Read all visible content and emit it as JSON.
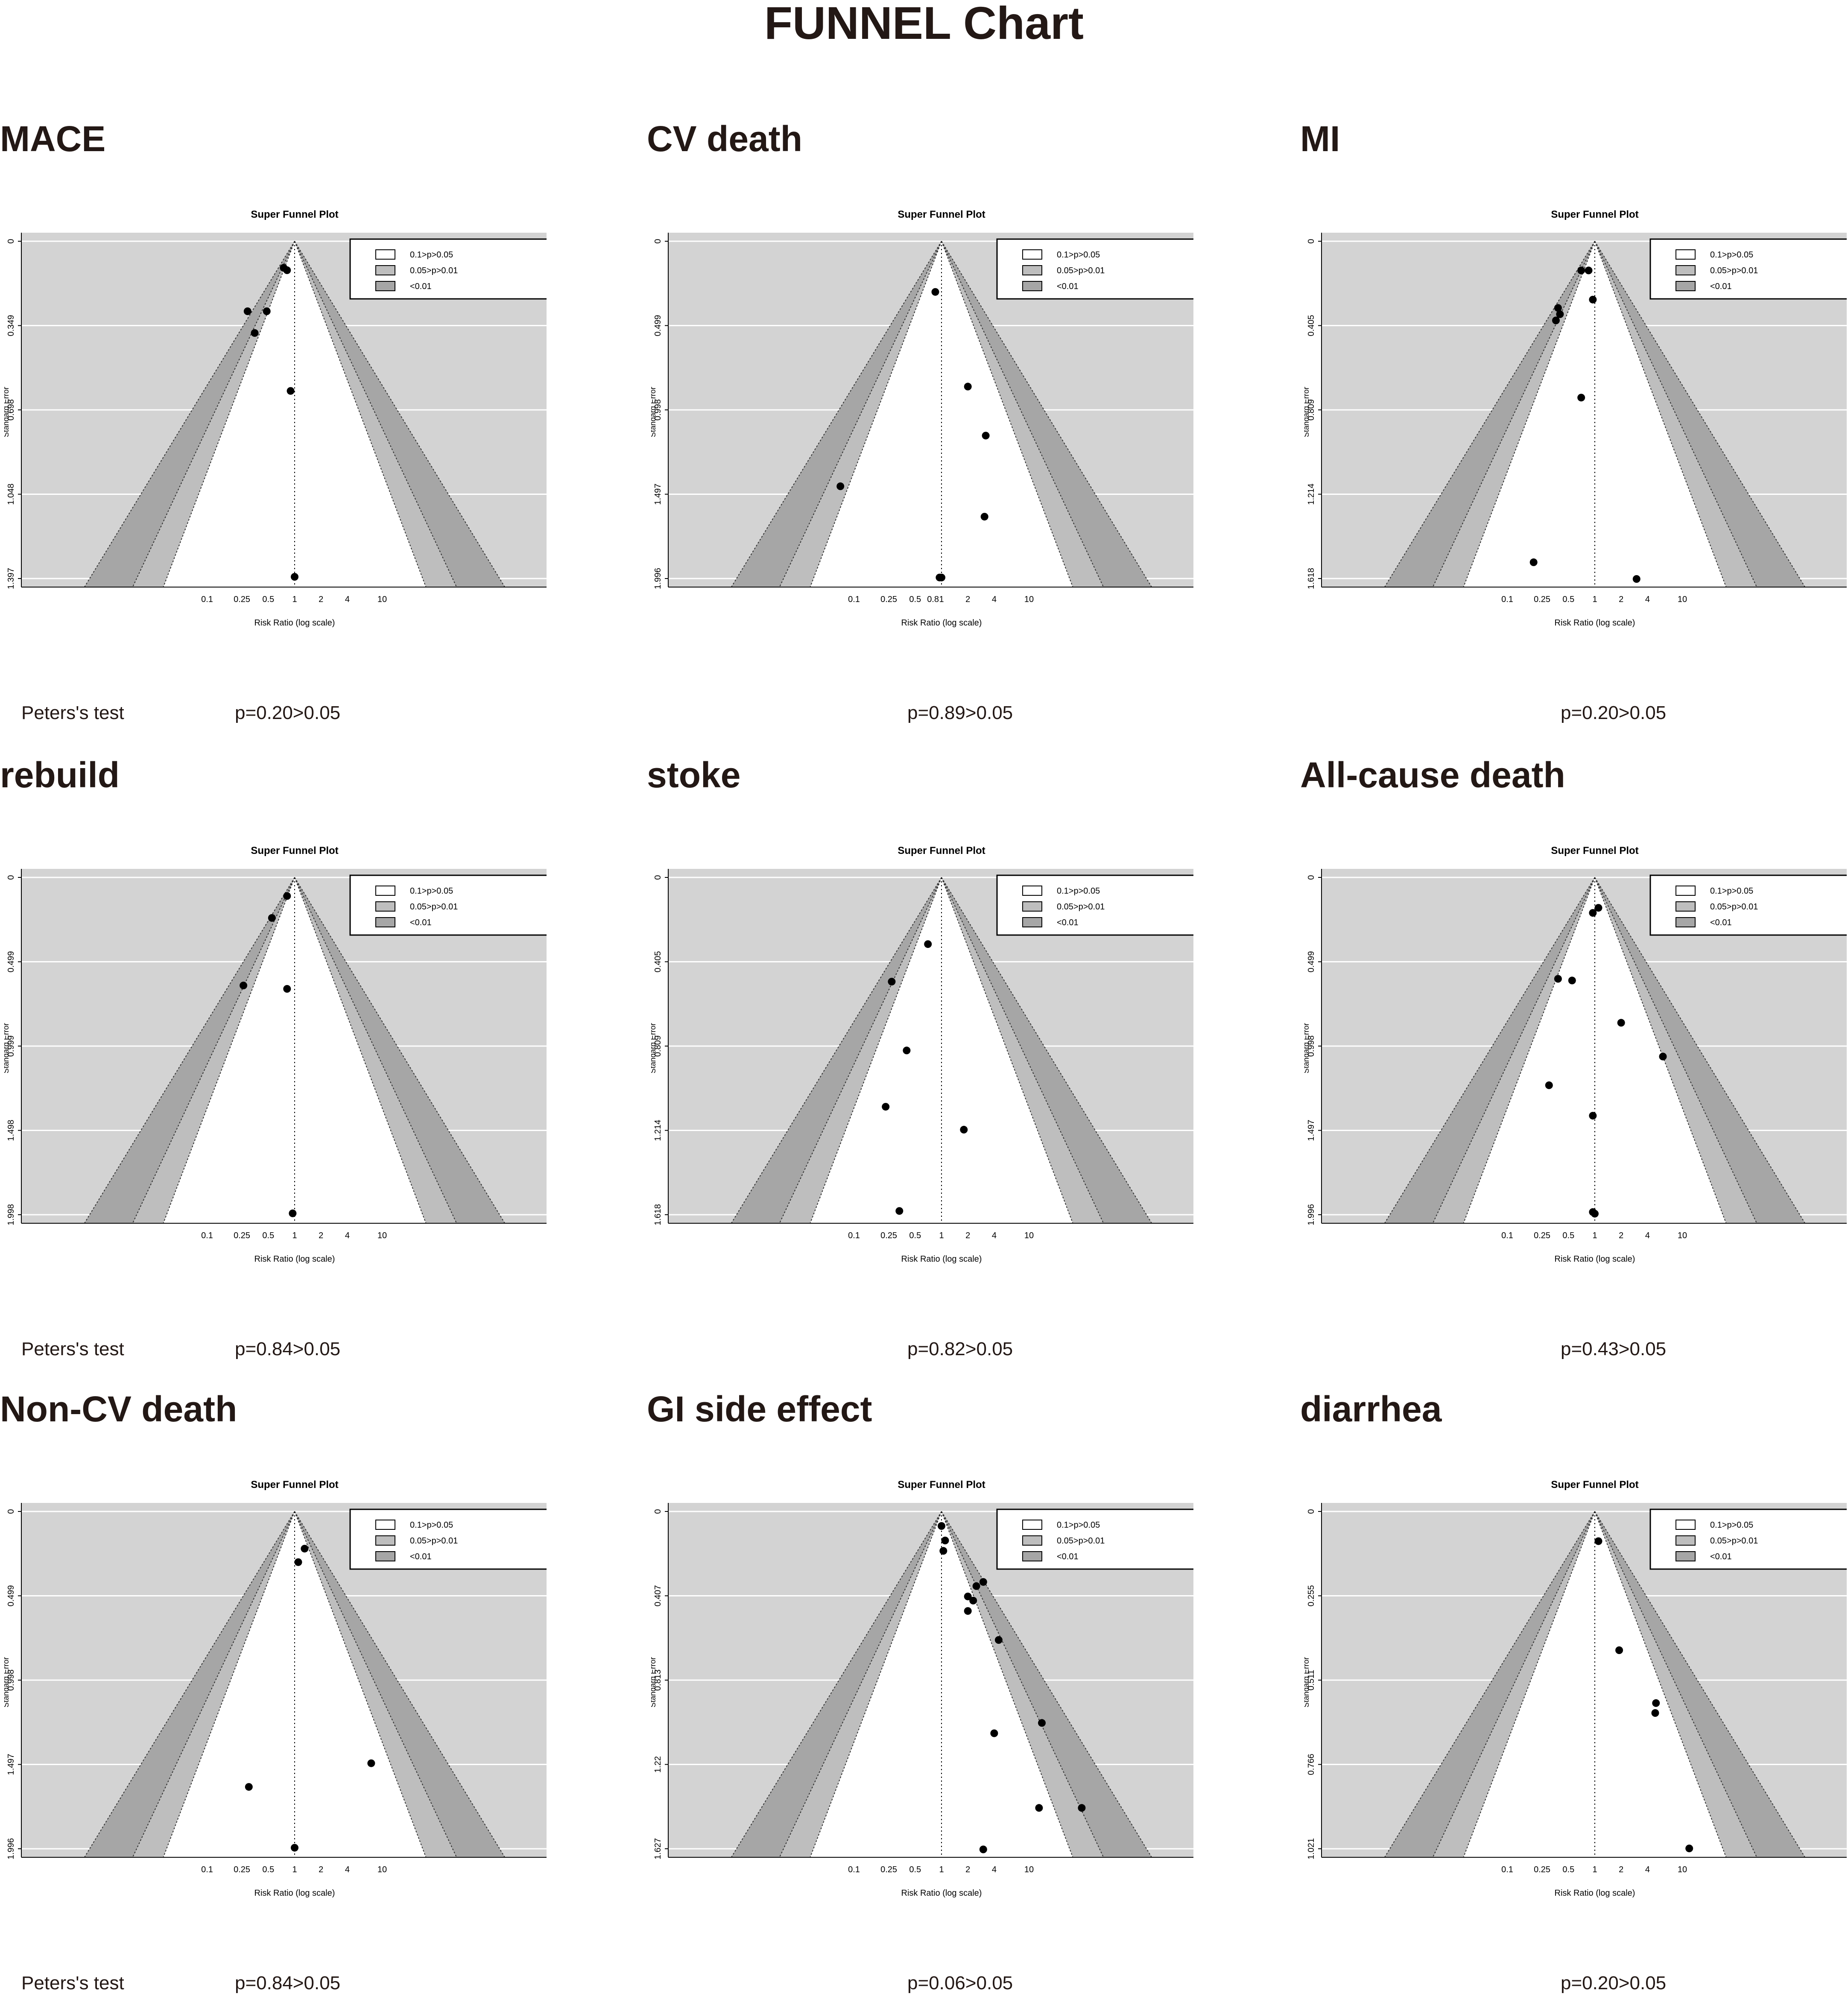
{
  "title": "FUNNEL Chart",
  "peters_label": "Peters's test",
  "legend": [
    "0.1>p>0.05",
    "0.05>p>0.01",
    "<0.01"
  ],
  "plot_title": "Super Funnel Plot",
  "xlabel": "Risk Ratio (log scale)",
  "ylabel": "Standard Error",
  "colors": {
    "background": "#d3d3d3",
    "band_p10": "#ffffff",
    "band_p05": "#bebebe",
    "band_p01": "#a6a6a6",
    "gridline": "#ffffff",
    "point": "#000000",
    "text": "#231815"
  },
  "chart_data": [
    {
      "type": "scatter",
      "panel_title": "MACE",
      "x_ticks": [
        "0.1",
        "0.25",
        "0.5",
        "1",
        "2",
        "4",
        "10"
      ],
      "y_ticks": [
        "0",
        "0.349",
        "0.698",
        "1.048",
        "1.397"
      ],
      "y_max": 1.397,
      "peters_p": "p=0.20>0.05",
      "show_peters_label": true,
      "points": [
        [
          0.75,
          0.11
        ],
        [
          0.82,
          0.12
        ],
        [
          0.29,
          0.29
        ],
        [
          0.48,
          0.29
        ],
        [
          0.35,
          0.38
        ],
        [
          0.9,
          0.62
        ],
        [
          1.0,
          1.39
        ]
      ]
    },
    {
      "type": "scatter",
      "panel_title": "CV death",
      "x_ticks": [
        "0.1",
        "0.25",
        "0.5",
        "0.8",
        "1",
        "2",
        "4",
        "10"
      ],
      "y_ticks": [
        "0",
        "0.499",
        "0.998",
        "1.497",
        "1.996"
      ],
      "y_max": 1.996,
      "peters_p": "p=0.89>0.05",
      "show_peters_label": false,
      "points": [
        [
          0.85,
          0.3
        ],
        [
          2.0,
          0.86
        ],
        [
          3.2,
          1.15
        ],
        [
          0.07,
          1.45
        ],
        [
          3.1,
          1.63
        ],
        [
          1.0,
          1.99
        ],
        [
          0.95,
          1.99
        ]
      ]
    },
    {
      "type": "scatter",
      "panel_title": "MI",
      "x_ticks": [
        "0.1",
        "0.25",
        "0.5",
        "1",
        "2",
        "4",
        "10"
      ],
      "y_ticks": [
        "0",
        "0.405",
        "0.809",
        "1.214",
        "1.618"
      ],
      "y_max": 1.618,
      "peters_p": "p=0.20>0.05",
      "show_peters_label": false,
      "points": [
        [
          0.7,
          0.14
        ],
        [
          0.85,
          0.14
        ],
        [
          0.38,
          0.32
        ],
        [
          0.4,
          0.35
        ],
        [
          0.36,
          0.38
        ],
        [
          0.95,
          0.28
        ],
        [
          0.7,
          0.75
        ],
        [
          0.2,
          1.54
        ],
        [
          3.0,
          1.62
        ]
      ]
    },
    {
      "type": "scatter",
      "panel_title": "rebuild",
      "x_ticks": [
        "0.1",
        "0.25",
        "0.5",
        "1",
        "2",
        "4",
        "10"
      ],
      "y_ticks": [
        "0",
        "0.499",
        "0.999",
        "1.498",
        "1.998"
      ],
      "y_max": 1.998,
      "peters_p": "p=0.84>0.05",
      "show_peters_label": true,
      "points": [
        [
          0.82,
          0.11
        ],
        [
          0.55,
          0.24
        ],
        [
          0.26,
          0.64
        ],
        [
          0.82,
          0.66
        ],
        [
          0.95,
          1.99
        ]
      ]
    },
    {
      "type": "scatter",
      "panel_title": "stoke",
      "x_ticks": [
        "0.1",
        "0.25",
        "0.5",
        "1",
        "2",
        "4",
        "10"
      ],
      "y_ticks": [
        "0",
        "0.405",
        "0.809",
        "1.214",
        "1.618"
      ],
      "y_max": 1.618,
      "peters_p": "p=0.82>0.05",
      "show_peters_label": false,
      "points": [
        [
          0.7,
          0.32
        ],
        [
          0.27,
          0.5
        ],
        [
          0.4,
          0.83
        ],
        [
          0.23,
          1.1
        ],
        [
          1.8,
          1.21
        ],
        [
          0.33,
          1.6
        ]
      ]
    },
    {
      "type": "scatter",
      "panel_title": "All-cause death",
      "x_ticks": [
        "0.1",
        "0.25",
        "0.5",
        "1",
        "2",
        "4",
        "10"
      ],
      "y_ticks": [
        "0",
        "0.499",
        "0.998",
        "1.497",
        "1.996"
      ],
      "y_max": 1.996,
      "peters_p": "p=0.43>0.05",
      "show_peters_label": false,
      "points": [
        [
          1.1,
          0.18
        ],
        [
          0.95,
          0.21
        ],
        [
          0.38,
          0.6
        ],
        [
          0.55,
          0.61
        ],
        [
          2.0,
          0.86
        ],
        [
          6.0,
          1.06
        ],
        [
          0.3,
          1.23
        ],
        [
          0.95,
          1.41
        ],
        [
          0.95,
          1.98
        ],
        [
          1.0,
          1.99
        ]
      ]
    },
    {
      "type": "scatter",
      "panel_title": "Non-CV death",
      "x_ticks": [
        "0.1",
        "0.25",
        "0.5",
        "1",
        "2",
        "4",
        "10"
      ],
      "y_ticks": [
        "0",
        "0.499",
        "0.998",
        "1.497",
        "1.996"
      ],
      "y_max": 1.996,
      "peters_p": "p=0.84>0.05",
      "show_peters_label": true,
      "points": [
        [
          1.3,
          0.22
        ],
        [
          1.1,
          0.3
        ],
        [
          7.5,
          1.49
        ],
        [
          0.3,
          1.63
        ],
        [
          1.0,
          1.99
        ]
      ]
    },
    {
      "type": "scatter",
      "panel_title": "GI side effect",
      "x_ticks": [
        "0.1",
        "0.25",
        "0.5",
        "1",
        "2",
        "4",
        "10"
      ],
      "y_ticks": [
        "0",
        "0.407",
        "0.813",
        "1.22",
        "1.627"
      ],
      "y_max": 1.627,
      "peters_p": "p=0.06>0.05",
      "show_peters_label": false,
      "points": [
        [
          1.0,
          0.07
        ],
        [
          1.1,
          0.14
        ],
        [
          1.05,
          0.19
        ],
        [
          3.0,
          0.34
        ],
        [
          2.5,
          0.36
        ],
        [
          2.0,
          0.41
        ],
        [
          2.3,
          0.43
        ],
        [
          2.0,
          0.48
        ],
        [
          4.5,
          0.62
        ],
        [
          14.0,
          1.02
        ],
        [
          4.0,
          1.07
        ],
        [
          13.0,
          1.43
        ],
        [
          40.0,
          1.43
        ],
        [
          3.0,
          1.63
        ]
      ]
    },
    {
      "type": "scatter",
      "panel_title": "diarrhea",
      "x_ticks": [
        "0.1",
        "0.25",
        "0.5",
        "1",
        "2",
        "4",
        "10"
      ],
      "y_ticks": [
        "0",
        "0.255",
        "0.511",
        "0.766",
        "1.021"
      ],
      "y_max": 1.021,
      "peters_p": "p=0.20>0.05",
      "show_peters_label": false,
      "points": [
        [
          1.1,
          0.09
        ],
        [
          1.9,
          0.42
        ],
        [
          5.0,
          0.58
        ],
        [
          4.9,
          0.61
        ],
        [
          12.0,
          1.02
        ]
      ]
    }
  ]
}
